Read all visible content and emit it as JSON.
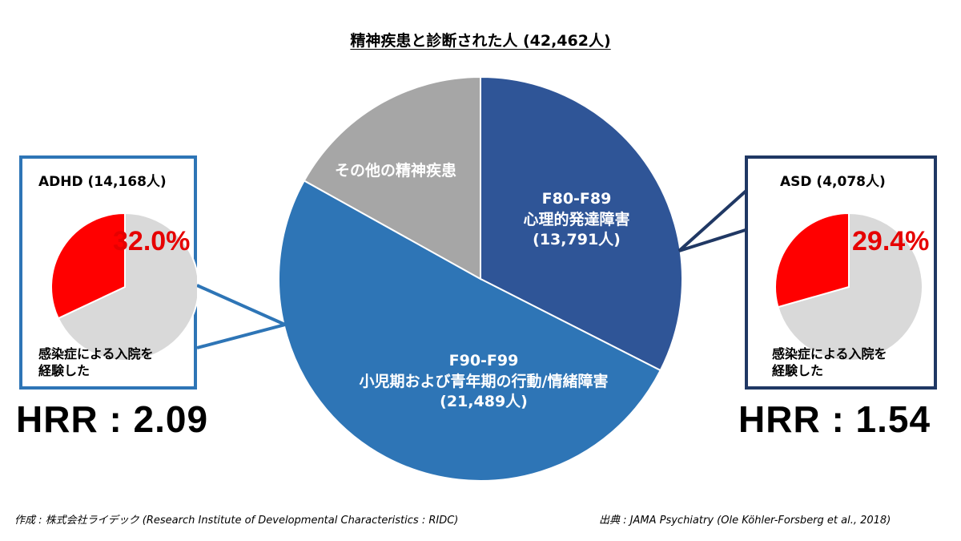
{
  "title": "精神疾患と診断された人 (42,462人)",
  "chart_data": {
    "type": "pie",
    "title": "精神疾患と診断された人 (42,462人)",
    "total": 42462,
    "slices": [
      {
        "label": "F80-F89",
        "sublabel": "心理的発達障害",
        "count_text": "(13,791人)",
        "value": 13791,
        "color": "#2f5597"
      },
      {
        "label": "F90-F99",
        "sublabel": "小児期および青年期の行動/情緒障害",
        "count_text": "(21,489人)",
        "value": 21489,
        "color": "#2e75b6"
      },
      {
        "label": "その他の精神疾患",
        "sublabel": "",
        "count_text": "",
        "value": 7182,
        "color": "#a6a6a6"
      }
    ],
    "sub_charts": [
      {
        "type": "pie",
        "title": "ADHD (14,168人)",
        "percent_label": "32.0%",
        "value": 32.0,
        "remainder": 68.0,
        "highlight_color": "#ff0000",
        "rest_color": "#d9d9d9"
      },
      {
        "type": "pie",
        "title": "ASD (4,078人)",
        "percent_label": "29.4%",
        "value": 29.4,
        "remainder": 70.6,
        "highlight_color": "#ff0000",
        "rest_color": "#d9d9d9"
      }
    ]
  },
  "adhd": {
    "title": "ADHD (14,168人)",
    "percent": "32.0%",
    "note_line1": "感染症による入院を",
    "note_line2": "経験した",
    "hrr": "HRR : 2.09",
    "border_color": "#2e75b6"
  },
  "asd": {
    "title": "ASD (4,078人)",
    "percent": "29.4%",
    "note_line1": "感染症による入院を",
    "note_line2": "経験した",
    "hrr": "HRR : 1.54",
    "border_color": "#203864"
  },
  "footer": {
    "credit": "作成 : 株式会社ライデック (Research Institute of Developmental Characteristics : RIDC)",
    "source": "出典 : JAMA Psychiatry (Ole Köhler-Forsberg et al., 2018)"
  }
}
